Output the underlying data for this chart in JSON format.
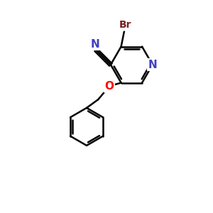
{
  "background_color": "#ffffff",
  "atom_colors": {
    "N": "#4040c0",
    "O": "#ff0000",
    "Br": "#7a2020",
    "C": "#000000",
    "bond": "#000000"
  },
  "line_width": 1.8,
  "font_size_atom": 11,
  "figsize": [
    3.0,
    3.0
  ],
  "dpi": 100,
  "xlim": [
    0,
    10
  ],
  "ylim": [
    0,
    10
  ]
}
